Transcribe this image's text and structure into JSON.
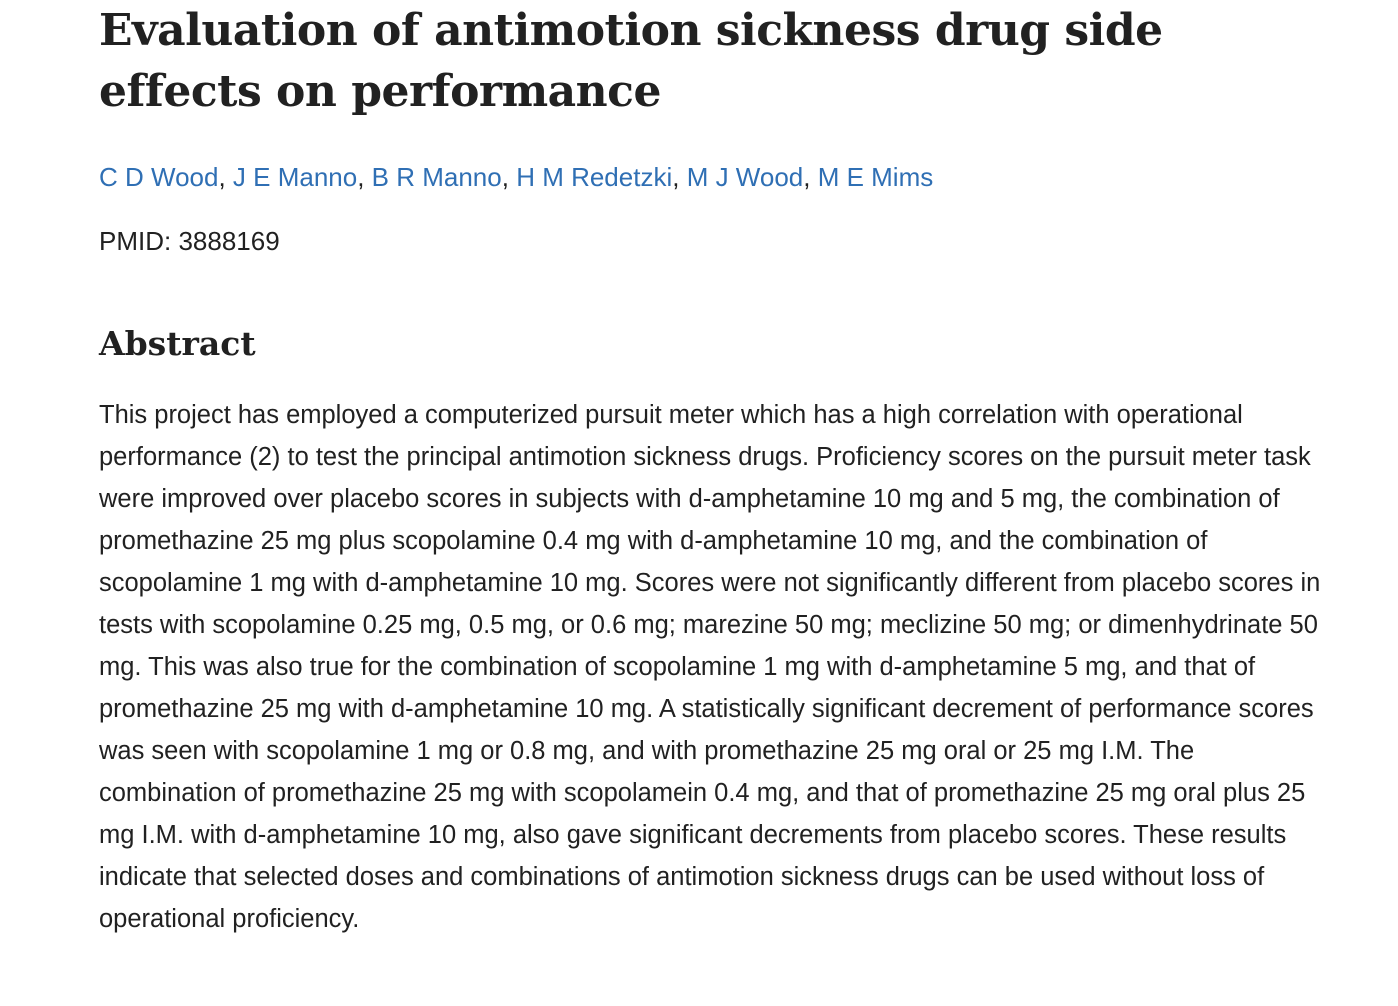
{
  "article": {
    "title": "Evaluation of antimotion sickness drug side effects on performance",
    "authors": [
      {
        "name": "C D Wood"
      },
      {
        "name": "J E Manno"
      },
      {
        "name": "B R Manno"
      },
      {
        "name": "H M Redetzki"
      },
      {
        "name": "M J Wood"
      },
      {
        "name": "M E Mims"
      }
    ],
    "author_separator": ", ",
    "pmid_label": "PMID: 3888169"
  },
  "abstract": {
    "heading": "Abstract",
    "text": "This project has employed a computerized pursuit meter which has a high correlation with operational performance (2) to test the principal antimotion sickness drugs. Proficiency scores on the pursuit meter task were improved over placebo scores in subjects with d-amphetamine 10 mg and 5 mg, the combination of promethazine 25 mg plus scopolamine 0.4 mg with d-amphetamine 10 mg, and the combination of scopolamine 1 mg with d-amphetamine 10 mg. Scores were not significantly different from placebo scores in tests with scopolamine 0.25 mg, 0.5 mg, or 0.6 mg; marezine 50 mg; meclizine 50 mg; or dimenhydrinate 50 mg. This was also true for the combination of scopolamine 1 mg with d-amphetamine 5 mg, and that of promethazine 25 mg with d-amphetamine 10 mg. A statistically significant decrement of performance scores was seen with scopolamine 1 mg or 0.8 mg, and with promethazine 25 mg oral or 25 mg I.M. The combination of promethazine 25 mg with scopolamein 0.4 mg, and that of promethazine 25 mg oral plus 25 mg I.M. with d-amphetamine 10 mg, also gave significant decrements from placebo scores. These results indicate that selected doses and combinations of antimotion sickness drugs can be used without loss of operational proficiency."
  },
  "colors": {
    "link": "#2f6fb4",
    "text": "#212121",
    "background": "#ffffff"
  }
}
